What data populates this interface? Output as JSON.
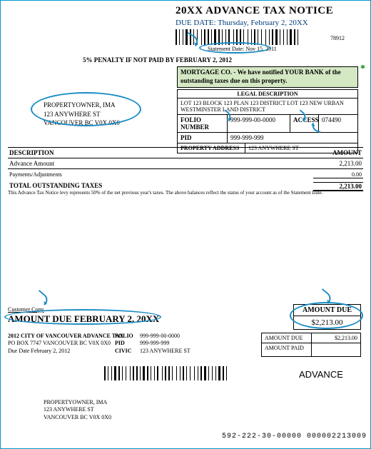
{
  "header": {
    "title": "20XX ADVANCE TAX NOTICE",
    "due_date": "DUE DATE: Thursday, February 2, 20XX",
    "doc_number": "78912",
    "statement_date": "Statement Date: Nov 15, 2011",
    "penalty": "5% PENALTY IF NOT PAID BY FEBRUARY 2, 2012"
  },
  "mortgage_notice": "MORTGAGE CO. - We have notified YOUR BANK of the outstanding taxes due on this property.",
  "legal": {
    "header": "LEGAL DESCRIPTION",
    "description": "LOT 123  BLOCK 123  PLAN 123  DISTRICT LOT 123 NEW  URBAN  WESTMINSTER LAND DISTRICT",
    "folio_label": "FOLIO NUMBER",
    "folio_value": "999-999-00-0000",
    "access_label": "ACCESS",
    "access_value": "074490",
    "pid_label": "PID",
    "pid_value": "999-999-999",
    "address_label": "PROPERTY ADDRESS",
    "address_value": "123 ANYWHERE ST"
  },
  "owner": {
    "name": "PROPERTYOWNER, IMA",
    "street": "123 ANYWHERE ST",
    "city": "VANCOUVER BC  V0X 0X0"
  },
  "table": {
    "col_desc": "DESCRIPTION",
    "col_amt": "AMOUNT",
    "item_label": "Advance Amount",
    "item_value": "2,213.00",
    "adj_label": "Payments/Adjustments",
    "adj_value": "0.00",
    "total_label": "TOTAL OUTSTANDING TAXES",
    "total_value": "2,213.00"
  },
  "note": "This Advance Tax Notice levy represents 50% of the net previous year's taxes. The above balances reflect the status of your account as of the Statement Date.",
  "stub": {
    "customer_copy": "Customer Copy",
    "amount_due_line": "AMOUNT DUE FEBRUARY 2, 20XX",
    "amount_due_label": "AMOUNT DUE",
    "amount_due_value": "$2,213.00",
    "org": "2012 CITY OF VANCOUVER ADVANCE TAX",
    "org_addr": "PO BOX 7747 VANCOUVER BC  V0X 0X0",
    "org_due": "Due Date February 2, 2012",
    "folio_lbl": "FOLIO",
    "folio_val": "999-999-00-0000",
    "pid_lbl": "PID",
    "pid_val": "999-999-999",
    "civic_lbl": "CIVIC",
    "civic_val": "123 ANYWHERE ST",
    "amt_due_lbl": "AMOUNT DUE",
    "amt_due_val": "$2,213.00",
    "amt_paid_lbl": "AMOUNT PAID",
    "advance": "ADVANCE",
    "ocr": "592-222-30-00000 000002213009"
  },
  "annotations": {
    "circle_color": "#1a8cc4",
    "highlight_color": "#d4e8c4"
  },
  "barcode": {
    "widths": [
      2,
      1,
      1,
      2,
      1,
      1,
      3,
      1,
      2,
      1,
      1,
      2,
      1,
      3,
      1,
      1,
      2,
      1,
      2,
      1,
      1,
      1,
      3,
      1,
      2,
      1,
      1,
      2,
      1,
      1,
      2,
      3,
      1,
      1,
      2,
      1,
      2,
      1,
      1,
      3,
      1,
      2,
      1,
      1,
      2,
      1,
      1,
      2,
      1,
      3,
      1,
      2,
      1,
      1,
      2,
      1,
      3,
      1,
      1,
      2,
      1,
      2,
      1,
      1,
      3,
      1,
      2,
      1,
      1,
      2
    ]
  }
}
